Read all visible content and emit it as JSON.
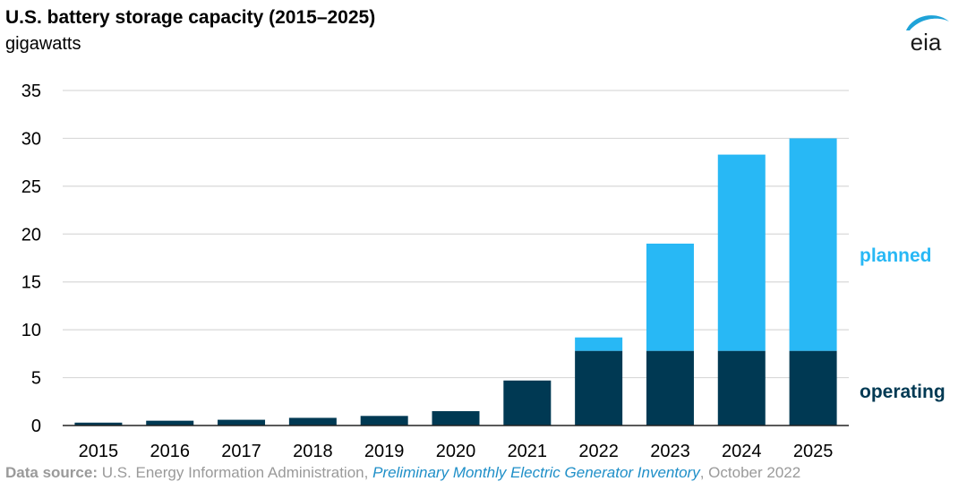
{
  "header": {
    "title": "U.S. battery storage capacity (2015–2025)",
    "subtitle": "gigawatts",
    "logo_text": "eia"
  },
  "colors": {
    "operating": "#003953",
    "planned": "#28b8f5",
    "grid": "#d9d9d9",
    "logo_blue": "#1fa3d8"
  },
  "chart_data": {
    "type": "bar",
    "stacked": true,
    "categories": [
      "2015",
      "2016",
      "2017",
      "2018",
      "2019",
      "2020",
      "2021",
      "2022",
      "2023",
      "2024",
      "2025"
    ],
    "series": [
      {
        "name": "operating",
        "values": [
          0.3,
          0.5,
          0.6,
          0.8,
          1.0,
          1.5,
          4.7,
          7.8,
          7.8,
          7.8,
          7.8
        ]
      },
      {
        "name": "planned",
        "values": [
          0,
          0,
          0,
          0,
          0,
          0,
          0,
          1.4,
          11.2,
          20.5,
          22.2
        ]
      }
    ],
    "ylim": [
      0,
      35
    ],
    "yticks": [
      "0",
      "5",
      "10",
      "15",
      "20",
      "25",
      "30",
      "35"
    ],
    "grid": true,
    "legend": {
      "planned": "planned",
      "operating": "operating"
    },
    "title": "U.S. battery storage capacity (2015–2025)",
    "ylabel": "gigawatts",
    "xlabel": ""
  },
  "footer": {
    "source_label": "Data source:",
    "source_text": " U.S. Energy Information Administration, ",
    "source_publication": "Preliminary Monthly Electric Generator Inventory",
    "source_date": ", October 2022"
  }
}
